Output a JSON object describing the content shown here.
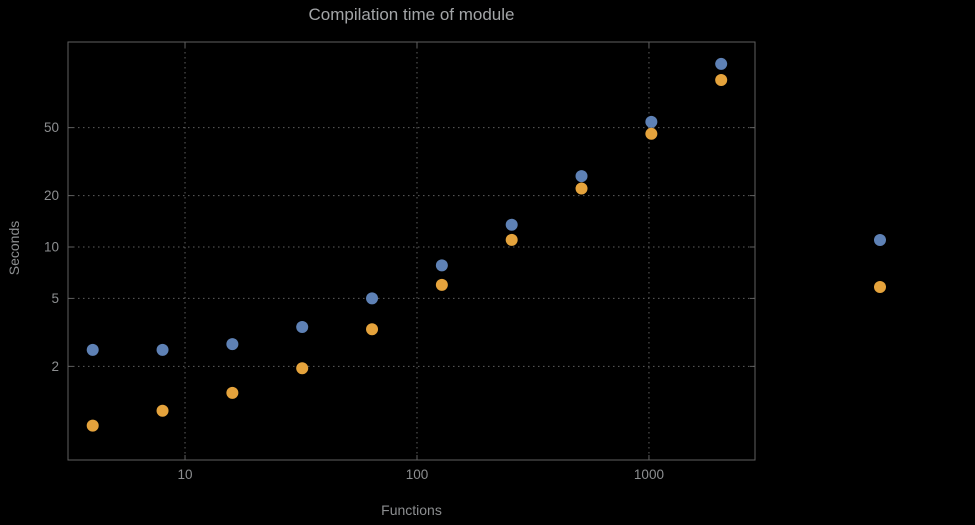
{
  "chart_data": {
    "type": "scatter",
    "title": "Compilation time of module",
    "xlabel": "Functions",
    "ylabel": "Seconds",
    "x_scale": "log",
    "y_scale": "log",
    "grid": true,
    "legend_position": "right",
    "xlim": [
      3.13,
      2865
    ],
    "ylim": [
      0.566,
      158.6
    ],
    "x_ticks": [
      {
        "value": 10,
        "label": "10"
      },
      {
        "value": 100,
        "label": "100"
      },
      {
        "value": 1000,
        "label": "1000"
      }
    ],
    "y_ticks": [
      {
        "value": 2,
        "label": "2"
      },
      {
        "value": 5,
        "label": "5"
      },
      {
        "value": 10,
        "label": "10"
      },
      {
        "value": 20,
        "label": "20"
      },
      {
        "value": 50,
        "label": "50"
      }
    ],
    "x": [
      4,
      8,
      16,
      32,
      64,
      128,
      256,
      512,
      1024,
      2048
    ],
    "series": [
      {
        "color": "#5e81b5",
        "values": [
          2.5,
          2.5,
          2.7,
          3.4,
          5.0,
          7.8,
          13.5,
          26,
          54,
          118
        ]
      },
      {
        "color": "#e5a33c",
        "values": [
          0.9,
          1.1,
          1.4,
          1.95,
          3.3,
          6.0,
          11,
          22,
          46,
          95
        ]
      }
    ]
  },
  "style": {
    "background": "#000000",
    "grid_color": "#5e5e5e",
    "frame_color": "#5f5f5f",
    "tick_label_color": "#8c8e90",
    "title_color": "#a3a5a7",
    "axis_label_color": "#8c8e90"
  }
}
